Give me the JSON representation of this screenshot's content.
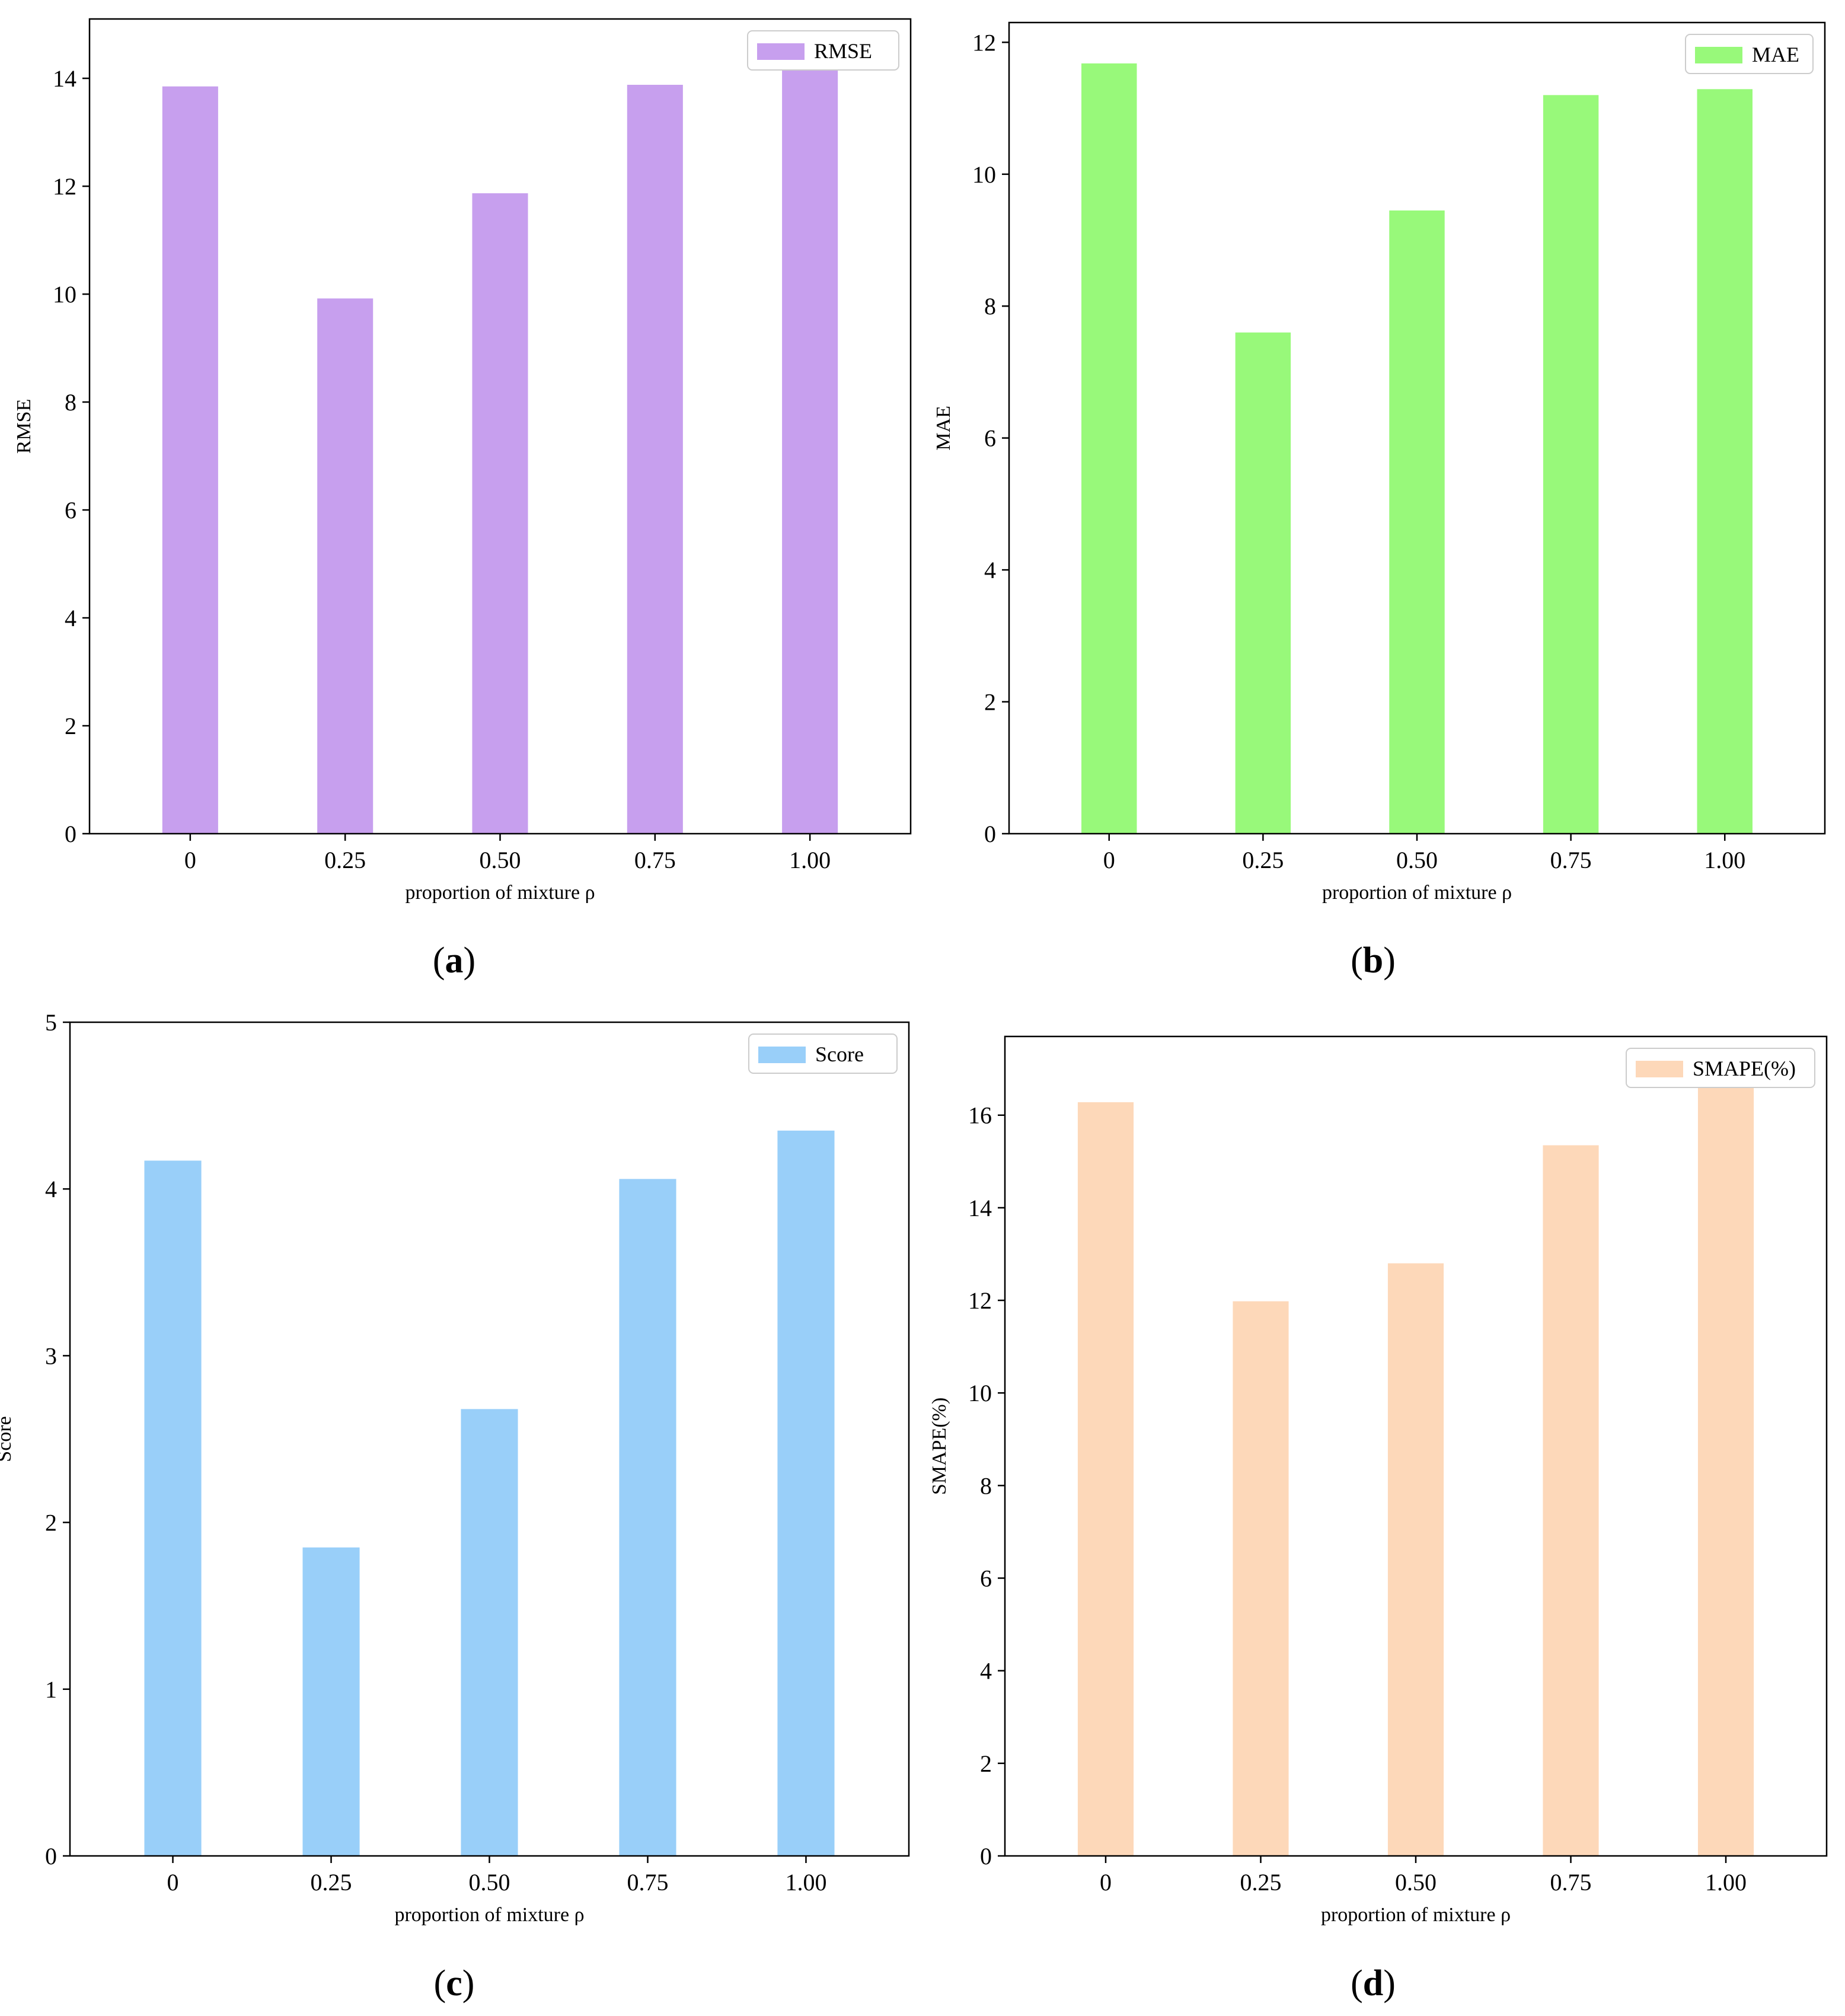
{
  "chart_data": [
    {
      "type": "bar",
      "caption_open": "(",
      "caption_letter": "a",
      "caption_close": ")",
      "categories": [
        "0",
        "0.25",
        "0.50",
        "0.75",
        "1.00"
      ],
      "series": [
        {
          "name": "RMSE",
          "values": [
            13.85,
            9.92,
            11.87,
            13.88,
            14.45
          ]
        }
      ],
      "xlabel": "proportion of mixture ρ",
      "ylabel": "RMSE",
      "ylim": [
        0,
        15.1
      ],
      "yticks": [
        0,
        2,
        4,
        6,
        8,
        10,
        12,
        14
      ],
      "color": "#c79fee",
      "legend": "top-right",
      "grid": false
    },
    {
      "type": "bar",
      "caption_open": "(",
      "caption_letter": "b",
      "caption_close": ")",
      "categories": [
        "0",
        "0.25",
        "0.50",
        "0.75",
        "1.00"
      ],
      "series": [
        {
          "name": "MAE",
          "values": [
            11.68,
            7.6,
            9.45,
            11.2,
            11.29
          ]
        }
      ],
      "xlabel": "proportion of mixture ρ",
      "ylabel": "MAE",
      "ylim": [
        0,
        12.3
      ],
      "yticks": [
        0,
        2,
        4,
        6,
        8,
        10,
        12
      ],
      "color": "#98f97a",
      "legend": "top-right",
      "grid": false
    },
    {
      "type": "bar",
      "caption_open": "(",
      "caption_letter": "c",
      "caption_close": ")",
      "categories": [
        "0",
        "0.25",
        "0.50",
        "0.75",
        "1.00"
      ],
      "series": [
        {
          "name": "Score",
          "values": [
            4.17,
            1.85,
            2.68,
            4.06,
            4.35
          ]
        }
      ],
      "xlabel": "proportion of mixture ρ",
      "ylabel": "Score",
      "ylim": [
        0,
        5
      ],
      "yticks": [
        0,
        1,
        2,
        3,
        4,
        5
      ],
      "color": "#99cff9",
      "legend": "top-right",
      "grid": false
    },
    {
      "type": "bar",
      "caption_open": "(",
      "caption_letter": "d",
      "caption_close": ")",
      "categories": [
        "0",
        "0.25",
        "0.50",
        "0.75",
        "1.00"
      ],
      "series": [
        {
          "name": "SMAPE(%)",
          "values": [
            16.28,
            11.98,
            12.8,
            15.35,
            16.7
          ]
        }
      ],
      "xlabel": "proportion of mixture ρ",
      "ylabel": "SMAPE(%)",
      "ylim": [
        0,
        17.7
      ],
      "yticks": [
        0,
        2,
        4,
        6,
        8,
        10,
        12,
        14,
        16
      ],
      "color": "#fdd8b9",
      "legend": "top-right",
      "grid": false
    }
  ]
}
